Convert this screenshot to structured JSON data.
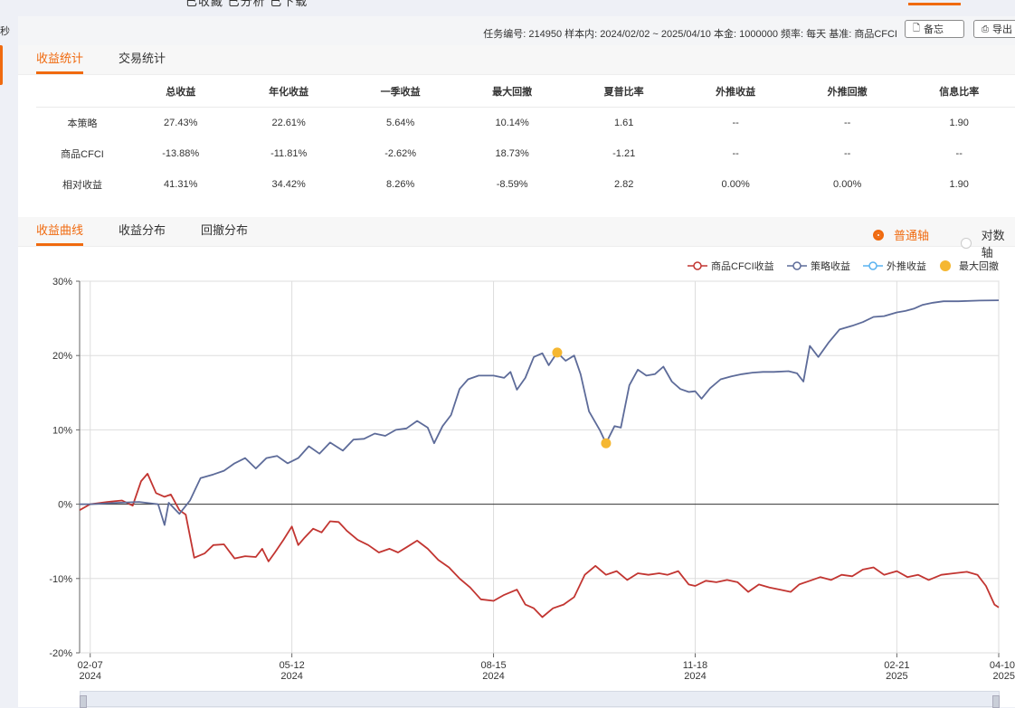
{
  "top": {
    "cut_text": "已收藏 已分析 已下载"
  },
  "side": {
    "cut_label": "秒"
  },
  "infobar": {
    "task_label": "任务编号:",
    "task_id": "214950",
    "sample_label": "样本内:",
    "sample_range": "2024/02/02 ~ 2025/04/10",
    "capital_label": "本金:",
    "capital": "1000000",
    "freq_label": "频率:",
    "freq": "每天",
    "bench_label": "基准:",
    "bench": "商品CFCI",
    "memo_button": "备忘",
    "export_button": "导出"
  },
  "stats_tabs": [
    "收益统计",
    "交易统计"
  ],
  "stats": {
    "headers": [
      "",
      "总收益",
      "年化收益",
      "一季收益",
      "最大回撤",
      "夏普比率",
      "外推收益",
      "外推回撤",
      "信息比率"
    ],
    "rows": [
      [
        "本策略",
        "27.43%",
        "22.61%",
        "5.64%",
        "10.14%",
        "1.61",
        "--",
        "--",
        "1.90"
      ],
      [
        "商品CFCI",
        "-13.88%",
        "-11.81%",
        "-2.62%",
        "18.73%",
        "-1.21",
        "--",
        "--",
        "--"
      ],
      [
        "相对收益",
        "41.31%",
        "34.42%",
        "8.26%",
        "-8.59%",
        "2.82",
        "0.00%",
        "0.00%",
        "1.90"
      ]
    ]
  },
  "chart_tabs": [
    "收益曲线",
    "收益分布",
    "回撤分布"
  ],
  "axis_mode": {
    "selected": "普通轴",
    "other": "对数轴"
  },
  "legend": [
    "商品CFCI收益",
    "策略收益",
    "外推收益",
    "最大回撤"
  ],
  "colors": {
    "accent": "#f06a0f",
    "bench": "#c23531",
    "strategy": "#5d6b99",
    "extrap": "#59b2f0",
    "maxdd": "#f5b731"
  },
  "chart_data": {
    "type": "line",
    "x_ticks": [
      {
        "date": "02-07",
        "year": "2024"
      },
      {
        "date": "05-12",
        "year": "2024"
      },
      {
        "date": "08-15",
        "year": "2024"
      },
      {
        "date": "11-18",
        "year": "2024"
      },
      {
        "date": "02-21",
        "year": "2025"
      },
      {
        "date": "04-10",
        "year": "2025"
      }
    ],
    "ylim": [
      -20,
      30
    ],
    "y_ticks": [
      "30%",
      "20%",
      "10%",
      "0%",
      "-10%",
      "-20%"
    ],
    "grid": true,
    "series": [
      {
        "name": "策略收益",
        "points": [
          [
            "2024-02-02",
            0
          ],
          [
            "2024-02-07",
            0
          ],
          [
            "2024-02-20",
            0.2
          ],
          [
            "2024-03-01",
            0.3
          ],
          [
            "2024-03-10",
            0
          ],
          [
            "2024-03-13",
            -2.8
          ],
          [
            "2024-03-15",
            0.2
          ],
          [
            "2024-03-20",
            -1.3
          ],
          [
            "2024-03-25",
            0.5
          ],
          [
            "2024-03-30",
            3.5
          ],
          [
            "2024-04-05",
            4
          ],
          [
            "2024-04-10",
            4.5
          ],
          [
            "2024-04-15",
            5.5
          ],
          [
            "2024-04-20",
            6.2
          ],
          [
            "2024-04-25",
            4.8
          ],
          [
            "2024-04-30",
            6.2
          ],
          [
            "2024-05-05",
            6.5
          ],
          [
            "2024-05-10",
            5.5
          ],
          [
            "2024-05-15",
            6.2
          ],
          [
            "2024-05-20",
            7.8
          ],
          [
            "2024-05-25",
            6.8
          ],
          [
            "2024-05-30",
            8.3
          ],
          [
            "2024-06-05",
            7.2
          ],
          [
            "2024-06-10",
            8.7
          ],
          [
            "2024-06-15",
            8.8
          ],
          [
            "2024-06-20",
            9.5
          ],
          [
            "2024-06-25",
            9.2
          ],
          [
            "2024-06-30",
            10
          ],
          [
            "2024-07-05",
            10.2
          ],
          [
            "2024-07-10",
            11.2
          ],
          [
            "2024-07-15",
            10.3
          ],
          [
            "2024-07-18",
            8.2
          ],
          [
            "2024-07-22",
            10.5
          ],
          [
            "2024-07-26",
            12
          ],
          [
            "2024-07-30",
            15.5
          ],
          [
            "2024-08-03",
            16.8
          ],
          [
            "2024-08-08",
            17.3
          ],
          [
            "2024-08-15",
            17.3
          ],
          [
            "2024-08-20",
            17
          ],
          [
            "2024-08-23",
            17.8
          ],
          [
            "2024-08-26",
            15.4
          ],
          [
            "2024-08-30",
            17
          ],
          [
            "2024-09-03",
            19.8
          ],
          [
            "2024-09-07",
            20.3
          ],
          [
            "2024-09-10",
            18.7
          ],
          [
            "2024-09-14",
            20.4
          ],
          [
            "2024-09-18",
            19.3
          ],
          [
            "2024-09-22",
            20
          ],
          [
            "2024-09-25",
            17.5
          ],
          [
            "2024-09-29",
            12.5
          ],
          [
            "2024-10-04",
            10
          ],
          [
            "2024-10-07",
            8.2
          ],
          [
            "2024-10-11",
            10.5
          ],
          [
            "2024-10-14",
            10.3
          ],
          [
            "2024-10-18",
            16
          ],
          [
            "2024-10-22",
            18.1
          ],
          [
            "2024-10-26",
            17.3
          ],
          [
            "2024-10-30",
            17.5
          ],
          [
            "2024-11-03",
            18.5
          ],
          [
            "2024-11-07",
            16.5
          ],
          [
            "2024-11-11",
            15.5
          ],
          [
            "2024-11-15",
            15.1
          ],
          [
            "2024-11-18",
            15.2
          ],
          [
            "2024-11-21",
            14.2
          ],
          [
            "2024-11-25",
            15.6
          ],
          [
            "2024-11-30",
            16.8
          ],
          [
            "2024-12-05",
            17.2
          ],
          [
            "2024-12-10",
            17.5
          ],
          [
            "2024-12-15",
            17.7
          ],
          [
            "2024-12-20",
            17.8
          ],
          [
            "2024-12-25",
            17.8
          ],
          [
            "2025-01-01",
            17.9
          ],
          [
            "2025-01-05",
            17.6
          ],
          [
            "2025-01-08",
            16.5
          ],
          [
            "2025-01-11",
            21.3
          ],
          [
            "2025-01-15",
            19.8
          ],
          [
            "2025-01-20",
            21.8
          ],
          [
            "2025-01-25",
            23.5
          ],
          [
            "2025-01-31",
            24
          ],
          [
            "2025-02-05",
            24.5
          ],
          [
            "2025-02-10",
            25.2
          ],
          [
            "2025-02-15",
            25.3
          ],
          [
            "2025-02-21",
            25.8
          ],
          [
            "2025-02-25",
            26
          ],
          [
            "2025-03-01",
            26.3
          ],
          [
            "2025-03-05",
            26.8
          ],
          [
            "2025-03-10",
            27.1
          ],
          [
            "2025-03-15",
            27.3
          ],
          [
            "2025-03-22",
            27.3
          ],
          [
            "2025-04-01",
            27.4
          ],
          [
            "2025-04-10",
            27.43
          ]
        ]
      },
      {
        "name": "商品CFCI收益",
        "points": [
          [
            "2024-02-02",
            -0.8
          ],
          [
            "2024-02-07",
            0
          ],
          [
            "2024-02-15",
            0.3
          ],
          [
            "2024-02-22",
            0.5
          ],
          [
            "2024-02-27",
            -0.2
          ],
          [
            "2024-03-02",
            3.1
          ],
          [
            "2024-03-05",
            4.1
          ],
          [
            "2024-03-09",
            1.5
          ],
          [
            "2024-03-13",
            1
          ],
          [
            "2024-03-16",
            1.3
          ],
          [
            "2024-03-20",
            -0.8
          ],
          [
            "2024-03-23",
            -1.4
          ],
          [
            "2024-03-27",
            -7.2
          ],
          [
            "2024-04-01",
            -6.6
          ],
          [
            "2024-04-05",
            -5.5
          ],
          [
            "2024-04-10",
            -5.4
          ],
          [
            "2024-04-15",
            -7.3
          ],
          [
            "2024-04-20",
            -7
          ],
          [
            "2024-04-25",
            -7.1
          ],
          [
            "2024-04-28",
            -6
          ],
          [
            "2024-05-01",
            -7.7
          ],
          [
            "2024-05-04",
            -6.5
          ],
          [
            "2024-05-08",
            -4.8
          ],
          [
            "2024-05-12",
            -3
          ],
          [
            "2024-05-15",
            -5.5
          ],
          [
            "2024-05-18",
            -4.5
          ],
          [
            "2024-05-22",
            -3.3
          ],
          [
            "2024-05-26",
            -3.8
          ],
          [
            "2024-05-30",
            -2.3
          ],
          [
            "2024-06-03",
            -2.4
          ],
          [
            "2024-06-07",
            -3.6
          ],
          [
            "2024-06-12",
            -4.8
          ],
          [
            "2024-06-17",
            -5.5
          ],
          [
            "2024-06-22",
            -6.5
          ],
          [
            "2024-06-27",
            -6
          ],
          [
            "2024-07-01",
            -6.5
          ],
          [
            "2024-07-05",
            -5.8
          ],
          [
            "2024-07-10",
            -4.9
          ],
          [
            "2024-07-15",
            -6
          ],
          [
            "2024-07-20",
            -7.5
          ],
          [
            "2024-07-25",
            -8.5
          ],
          [
            "2024-07-30",
            -10
          ],
          [
            "2024-08-04",
            -11.2
          ],
          [
            "2024-08-09",
            -12.8
          ],
          [
            "2024-08-15",
            -13
          ],
          [
            "2024-08-20",
            -12.2
          ],
          [
            "2024-08-26",
            -11.5
          ],
          [
            "2024-08-30",
            -13.5
          ],
          [
            "2024-09-03",
            -14
          ],
          [
            "2024-09-07",
            -15.2
          ],
          [
            "2024-09-12",
            -14
          ],
          [
            "2024-09-17",
            -13.5
          ],
          [
            "2024-09-22",
            -12.5
          ],
          [
            "2024-09-27",
            -9.5
          ],
          [
            "2024-10-02",
            -8.3
          ],
          [
            "2024-10-07",
            -9.5
          ],
          [
            "2024-10-12",
            -9
          ],
          [
            "2024-10-17",
            -10.2
          ],
          [
            "2024-10-22",
            -9.3
          ],
          [
            "2024-10-27",
            -9.5
          ],
          [
            "2024-11-01",
            -9.3
          ],
          [
            "2024-11-05",
            -9.5
          ],
          [
            "2024-11-10",
            -9
          ],
          [
            "2024-11-15",
            -10.8
          ],
          [
            "2024-11-18",
            -11
          ],
          [
            "2024-11-23",
            -10.3
          ],
          [
            "2024-11-28",
            -10.5
          ],
          [
            "2024-12-03",
            -10.2
          ],
          [
            "2024-12-08",
            -10.5
          ],
          [
            "2024-12-13",
            -11.8
          ],
          [
            "2024-12-18",
            -10.8
          ],
          [
            "2024-12-23",
            -11.2
          ],
          [
            "2024-12-28",
            -11.5
          ],
          [
            "2025-01-02",
            -11.8
          ],
          [
            "2025-01-06",
            -10.8
          ],
          [
            "2025-01-11",
            -10.3
          ],
          [
            "2025-01-16",
            -9.8
          ],
          [
            "2025-01-21",
            -10.2
          ],
          [
            "2025-01-26",
            -9.5
          ],
          [
            "2025-01-31",
            -9.7
          ],
          [
            "2025-02-05",
            -8.8
          ],
          [
            "2025-02-10",
            -8.5
          ],
          [
            "2025-02-15",
            -9.5
          ],
          [
            "2025-02-21",
            -9
          ],
          [
            "2025-02-26",
            -9.8
          ],
          [
            "2025-03-03",
            -9.5
          ],
          [
            "2025-03-08",
            -10.2
          ],
          [
            "2025-03-14",
            -9.5
          ],
          [
            "2025-03-20",
            -9.3
          ],
          [
            "2025-03-26",
            -9.1
          ],
          [
            "2025-03-31",
            -9.5
          ],
          [
            "2025-04-04",
            -11
          ],
          [
            "2025-04-08",
            -13.5
          ],
          [
            "2025-04-10",
            -13.88
          ]
        ]
      }
    ],
    "max_drawdown_points": [
      [
        "2024-09-14",
        20.4
      ],
      [
        "2024-10-07",
        8.2
      ]
    ]
  }
}
